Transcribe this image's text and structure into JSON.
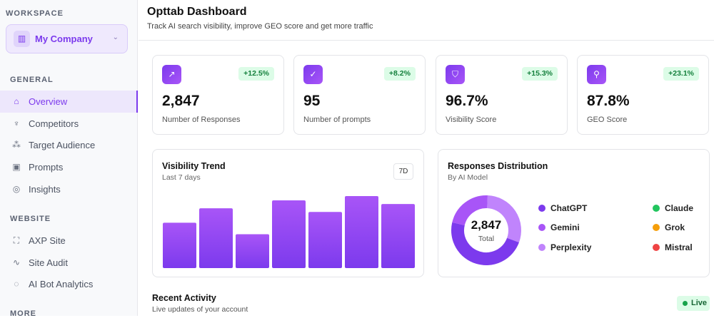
{
  "sidebar": {
    "workspace_label": "WORKSPACE",
    "workspace_name": "My Company",
    "sections": [
      {
        "title": "GENERAL",
        "items": [
          {
            "label": "Overview",
            "icon": "home-icon",
            "active": true
          },
          {
            "label": "Competitors",
            "icon": "trophy-icon"
          },
          {
            "label": "Target Audience",
            "icon": "users-icon"
          },
          {
            "label": "Prompts",
            "icon": "terminal-icon"
          },
          {
            "label": "Insights",
            "icon": "gauge-icon"
          }
        ]
      },
      {
        "title": "WEBSITE",
        "items": [
          {
            "label": "AXP Site",
            "icon": "scan-icon"
          },
          {
            "label": "Site Audit",
            "icon": "activity-icon"
          },
          {
            "label": "AI Bot Analytics",
            "icon": "chat-icon"
          }
        ]
      },
      {
        "title": "MORE",
        "items": []
      }
    ]
  },
  "header": {
    "title": "Opttab Dashboard",
    "subtitle": "Track AI search visibility, improve GEO score and get more traffic"
  },
  "stats": [
    {
      "value": "2,847",
      "label": "Number of Responses",
      "change": "+12.5%",
      "icon": "trending-up-icon"
    },
    {
      "value": "95",
      "label": "Number of prompts",
      "change": "+8.2%",
      "icon": "check-circle-icon"
    },
    {
      "value": "96.7%",
      "label": "Visibility Score",
      "change": "+15.3%",
      "icon": "shield-check-icon"
    },
    {
      "value": "87.8%",
      "label": "GEO Score",
      "change": "+23.1%",
      "icon": "search-icon"
    }
  ],
  "trend": {
    "title": "Visibility Trend",
    "subtitle": "Last 7 days",
    "range_button": "7D"
  },
  "distribution": {
    "title": "Responses Distribution",
    "subtitle": "By AI Model",
    "total": "2,847",
    "total_label": "Total"
  },
  "recent": {
    "title": "Recent Activity",
    "subtitle": "Live updates of your account",
    "live_label": "Live"
  },
  "colors": {
    "accent": "#7c3aed",
    "success": "#16a34a"
  },
  "chart_data": [
    {
      "type": "bar",
      "title": "Visibility Trend",
      "values": [
        63,
        83,
        47,
        94,
        78,
        100,
        89
      ],
      "ylim": [
        0,
        100
      ],
      "grid": false,
      "color": "#9333ea"
    },
    {
      "type": "pie",
      "title": "Responses Distribution",
      "total": "2,847",
      "slices": [
        {
          "name": "ChatGPT",
          "value": 48,
          "color": "#7c3aed"
        },
        {
          "name": "Gemini",
          "value": 22,
          "color": "#a855f7"
        },
        {
          "name": "Perplexity",
          "value": 30,
          "color": "#c084fc"
        },
        {
          "name": "Claude",
          "value": 0,
          "color": "#22c55e"
        },
        {
          "name": "Grok",
          "value": 0,
          "color": "#f59e0b"
        },
        {
          "name": "Mistral",
          "value": 0,
          "color": "#ef4444"
        }
      ],
      "legend": "right"
    }
  ]
}
